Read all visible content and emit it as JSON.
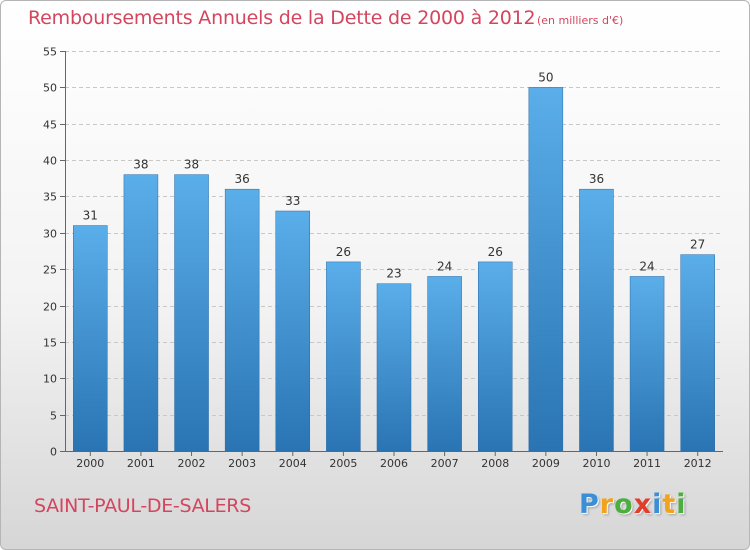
{
  "chart_data": {
    "type": "bar",
    "title": "Remboursements Annuels de la Dette de 2000 à 2012",
    "unit_note": "(en milliers d'€)",
    "categories": [
      "2000",
      "2001",
      "2002",
      "2003",
      "2004",
      "2005",
      "2006",
      "2007",
      "2008",
      "2009",
      "2010",
      "2011",
      "2012"
    ],
    "values": [
      31,
      38,
      38,
      36,
      33,
      26,
      23,
      24,
      26,
      50,
      36,
      24,
      27
    ],
    "ylim": [
      0,
      55
    ],
    "yticks": [
      0,
      5,
      10,
      15,
      20,
      25,
      30,
      35,
      40,
      45,
      50,
      55
    ],
    "grid": true,
    "bar_color_top": "#5aaee9",
    "bar_color_bottom": "#2a74b3"
  },
  "footer": {
    "city": "SAINT-PAUL-DE-SALERS",
    "logo_letters": [
      "P",
      "r",
      "o",
      "x",
      "i",
      "t",
      "i"
    ],
    "logo_colors": [
      "#3a8fd6",
      "#f2a21b",
      "#4cae3f",
      "#e23c2a",
      "#3a8fd6",
      "#f2a21b",
      "#4cae3f"
    ]
  },
  "theme": {
    "accent": "#d4455e"
  }
}
